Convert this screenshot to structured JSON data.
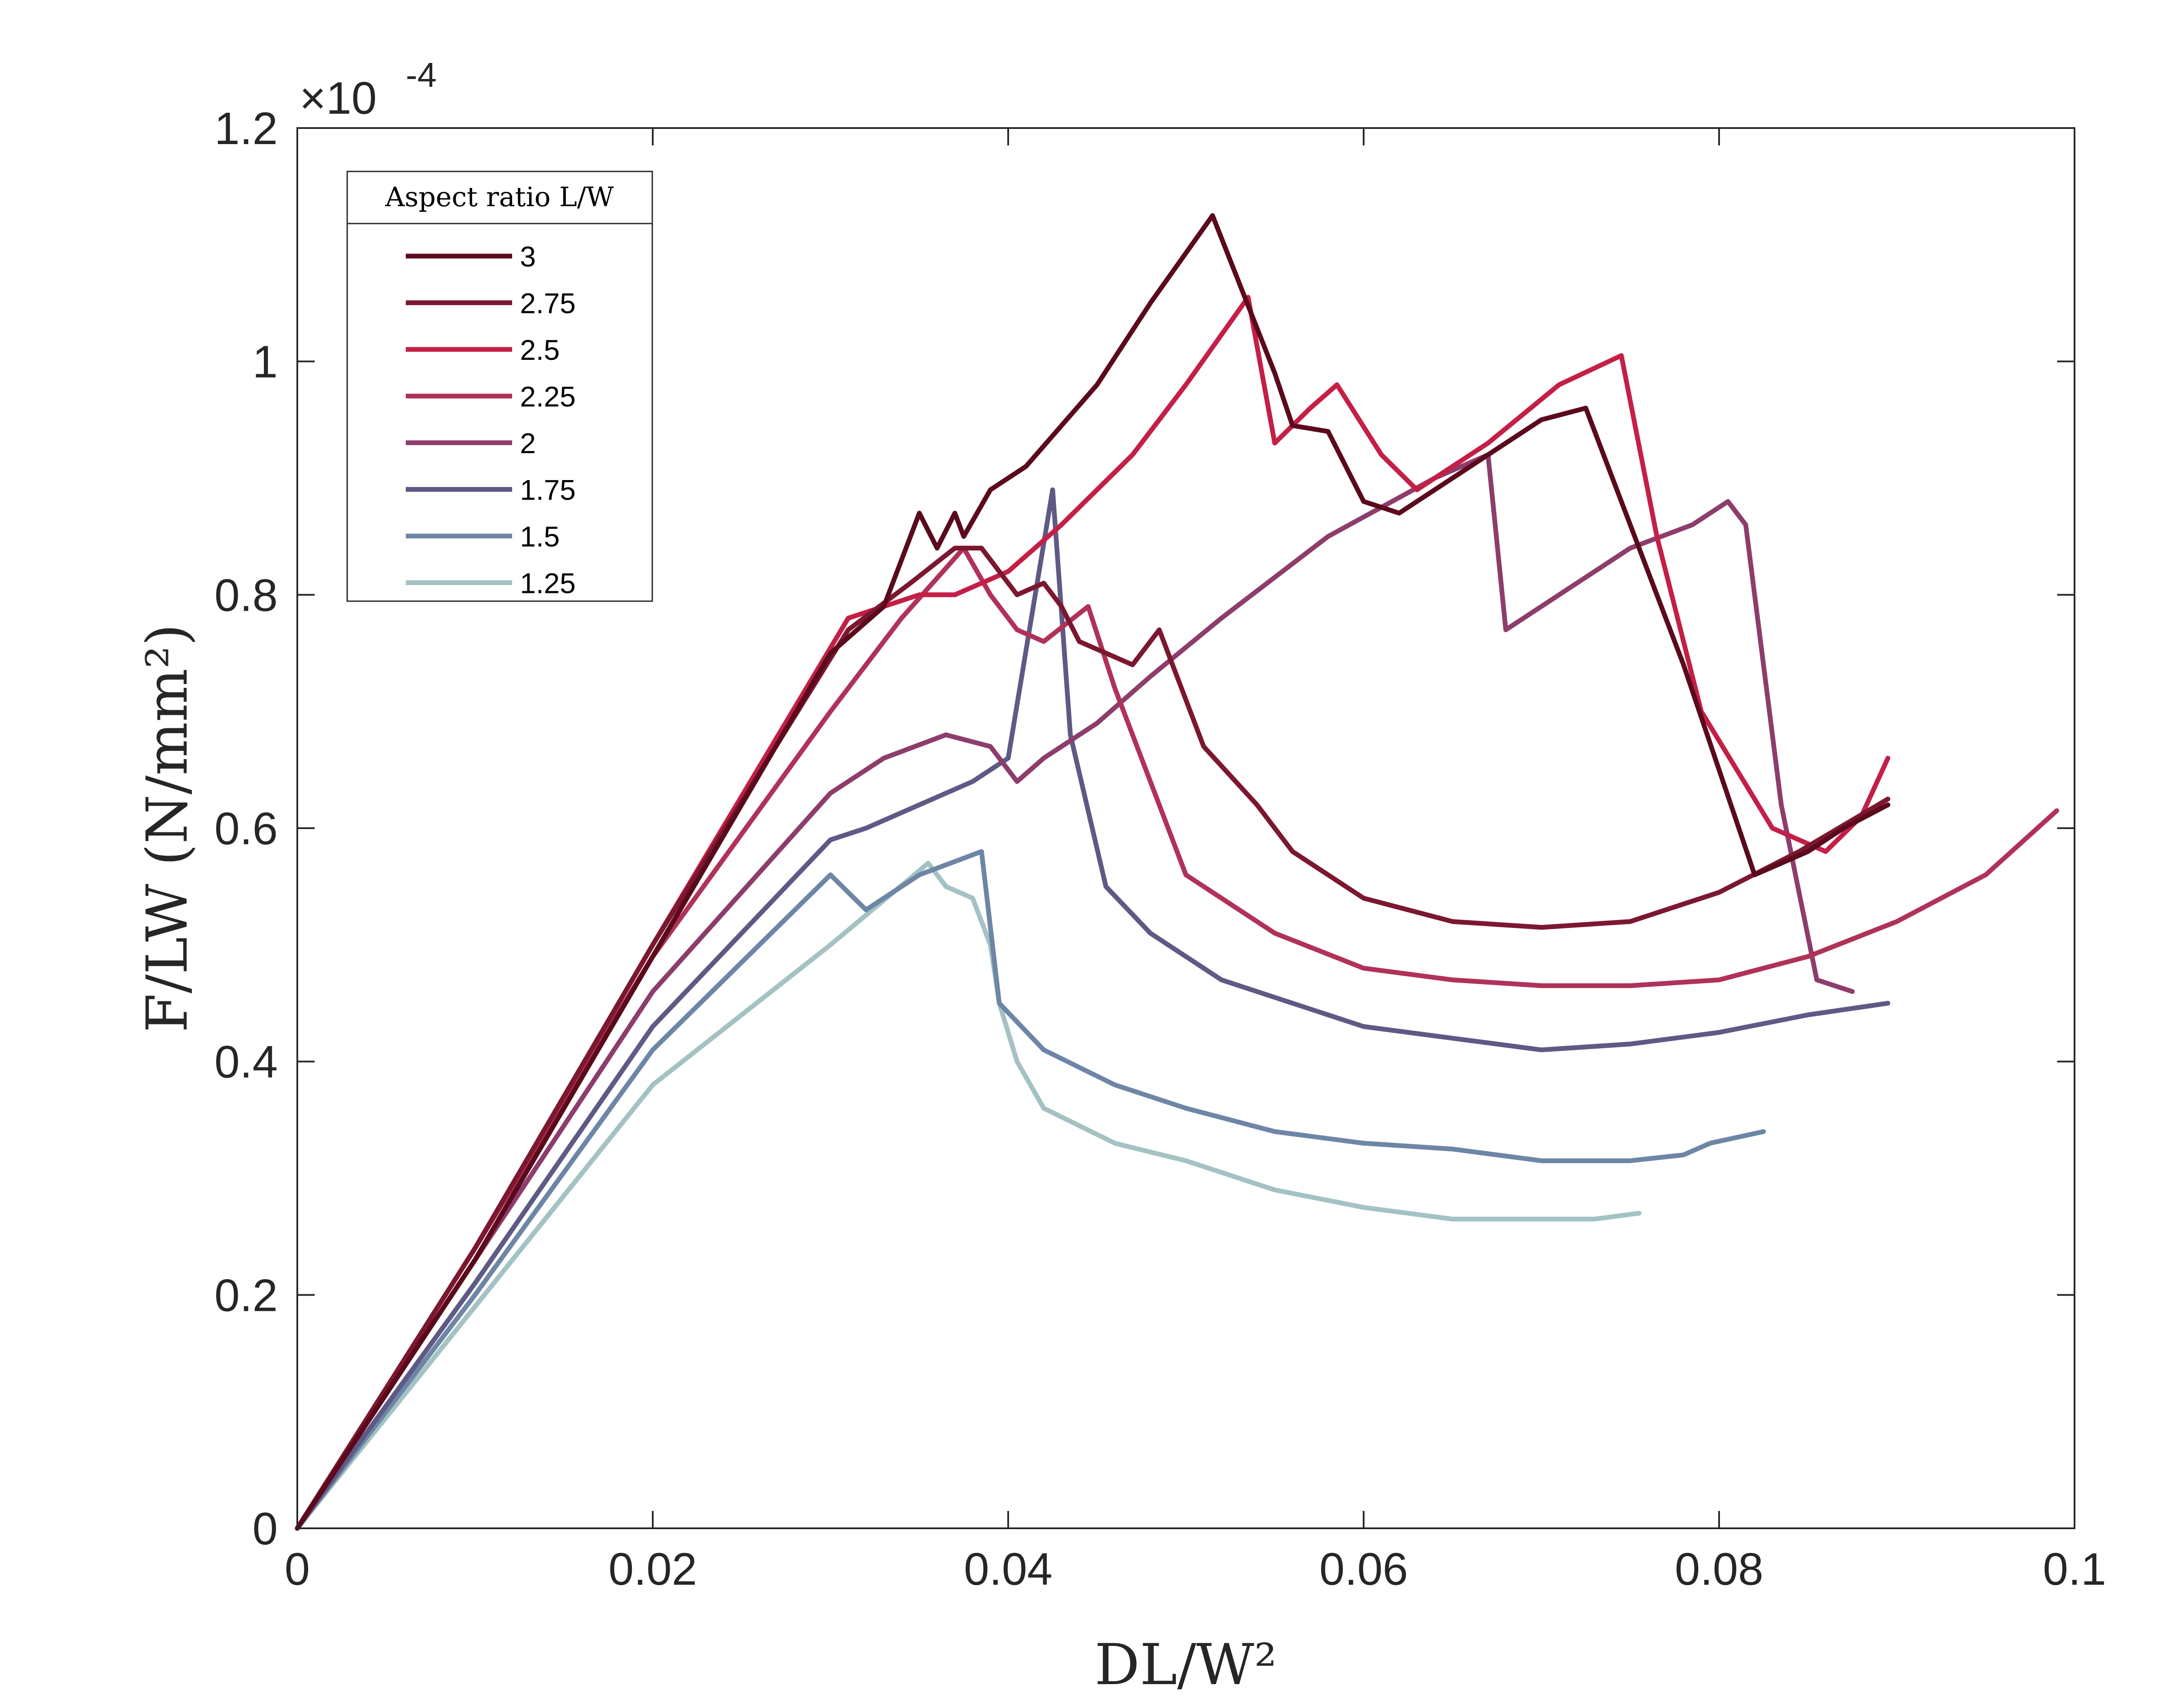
{
  "chart_data": {
    "type": "line",
    "title": "",
    "xlabel": "DL/W²",
    "ylabel": "F/LW (N/mm²)",
    "y_exponent_label": "×10",
    "y_exponent_value": "-4",
    "xlim": [
      0,
      0.1
    ],
    "ylim": [
      0,
      1.2
    ],
    "x_ticks": [
      0,
      0.02,
      0.04,
      0.06,
      0.08,
      0.1
    ],
    "x_tick_labels": [
      "0",
      "0.02",
      "0.04",
      "0.06",
      "0.08",
      "0.1"
    ],
    "y_ticks": [
      0,
      0.2,
      0.4,
      0.6,
      0.8,
      1.0,
      1.2
    ],
    "y_tick_labels": [
      "0",
      "0.2",
      "0.4",
      "0.6",
      "0.8",
      "1",
      "1.2"
    ],
    "grid": false,
    "legend_title": "Aspect ratio L/W",
    "legend_position": "top-left",
    "series": [
      {
        "name": "3",
        "color": "#5a0a1c",
        "points": [
          [
            0,
            0
          ],
          [
            0.01,
            0.23
          ],
          [
            0.02,
            0.49
          ],
          [
            0.03,
            0.75
          ],
          [
            0.033,
            0.79
          ],
          [
            0.035,
            0.87
          ],
          [
            0.036,
            0.84
          ],
          [
            0.037,
            0.87
          ],
          [
            0.0375,
            0.85
          ],
          [
            0.039,
            0.89
          ],
          [
            0.041,
            0.91
          ],
          [
            0.045,
            0.98
          ],
          [
            0.048,
            1.05
          ],
          [
            0.0515,
            1.125
          ],
          [
            0.055,
            0.99
          ],
          [
            0.056,
            0.945
          ],
          [
            0.058,
            0.94
          ],
          [
            0.06,
            0.88
          ],
          [
            0.062,
            0.87
          ],
          [
            0.066,
            0.91
          ],
          [
            0.07,
            0.95
          ],
          [
            0.0725,
            0.96
          ],
          [
            0.0745,
            0.88
          ],
          [
            0.078,
            0.74
          ],
          [
            0.082,
            0.56
          ],
          [
            0.085,
            0.58
          ],
          [
            0.087,
            0.6
          ],
          [
            0.0895,
            0.62
          ]
        ]
      },
      {
        "name": "2.75",
        "color": "#7c1730",
        "points": [
          [
            0,
            0
          ],
          [
            0.01,
            0.24
          ],
          [
            0.02,
            0.5
          ],
          [
            0.031,
            0.77
          ],
          [
            0.0345,
            0.81
          ],
          [
            0.037,
            0.84
          ],
          [
            0.0385,
            0.84
          ],
          [
            0.0395,
            0.82
          ],
          [
            0.0405,
            0.8
          ],
          [
            0.042,
            0.81
          ],
          [
            0.043,
            0.79
          ],
          [
            0.044,
            0.76
          ],
          [
            0.047,
            0.74
          ],
          [
            0.0485,
            0.77
          ],
          [
            0.0495,
            0.73
          ],
          [
            0.051,
            0.67
          ],
          [
            0.054,
            0.62
          ],
          [
            0.056,
            0.58
          ],
          [
            0.06,
            0.54
          ],
          [
            0.065,
            0.52
          ],
          [
            0.07,
            0.515
          ],
          [
            0.075,
            0.52
          ],
          [
            0.08,
            0.545
          ],
          [
            0.0845,
            0.58
          ],
          [
            0.0895,
            0.625
          ]
        ]
      },
      {
        "name": "2.5",
        "color": "#c41f46",
        "points": [
          [
            0,
            0
          ],
          [
            0.01,
            0.24
          ],
          [
            0.02,
            0.5
          ],
          [
            0.031,
            0.78
          ],
          [
            0.035,
            0.8
          ],
          [
            0.037,
            0.8
          ],
          [
            0.04,
            0.82
          ],
          [
            0.043,
            0.86
          ],
          [
            0.047,
            0.92
          ],
          [
            0.05,
            0.98
          ],
          [
            0.0535,
            1.055
          ],
          [
            0.055,
            0.93
          ],
          [
            0.057,
            0.96
          ],
          [
            0.0585,
            0.98
          ],
          [
            0.061,
            0.92
          ],
          [
            0.063,
            0.89
          ],
          [
            0.067,
            0.93
          ],
          [
            0.071,
            0.98
          ],
          [
            0.0745,
            1.005
          ],
          [
            0.0765,
            0.85
          ],
          [
            0.079,
            0.7
          ],
          [
            0.083,
            0.6
          ],
          [
            0.086,
            0.58
          ],
          [
            0.088,
            0.61
          ],
          [
            0.0895,
            0.66
          ]
        ]
      },
      {
        "name": "2.25",
        "color": "#b03258",
        "points": [
          [
            0,
            0
          ],
          [
            0.01,
            0.24
          ],
          [
            0.02,
            0.49
          ],
          [
            0.03,
            0.7
          ],
          [
            0.032,
            0.74
          ],
          [
            0.034,
            0.78
          ],
          [
            0.0375,
            0.84
          ],
          [
            0.039,
            0.8
          ],
          [
            0.0405,
            0.77
          ],
          [
            0.042,
            0.76
          ],
          [
            0.0445,
            0.79
          ],
          [
            0.046,
            0.72
          ],
          [
            0.048,
            0.64
          ],
          [
            0.05,
            0.56
          ],
          [
            0.055,
            0.51
          ],
          [
            0.06,
            0.48
          ],
          [
            0.065,
            0.47
          ],
          [
            0.07,
            0.465
          ],
          [
            0.075,
            0.465
          ],
          [
            0.08,
            0.47
          ],
          [
            0.085,
            0.49
          ],
          [
            0.09,
            0.52
          ],
          [
            0.095,
            0.56
          ],
          [
            0.099,
            0.615
          ]
        ]
      },
      {
        "name": "2",
        "color": "#8d3d6b",
        "points": [
          [
            0,
            0
          ],
          [
            0.01,
            0.23
          ],
          [
            0.02,
            0.46
          ],
          [
            0.03,
            0.63
          ],
          [
            0.033,
            0.66
          ],
          [
            0.0365,
            0.68
          ],
          [
            0.039,
            0.67
          ],
          [
            0.0405,
            0.64
          ],
          [
            0.042,
            0.66
          ],
          [
            0.045,
            0.69
          ],
          [
            0.048,
            0.73
          ],
          [
            0.052,
            0.78
          ],
          [
            0.058,
            0.85
          ],
          [
            0.064,
            0.9
          ],
          [
            0.067,
            0.92
          ],
          [
            0.068,
            0.77
          ],
          [
            0.07,
            0.79
          ],
          [
            0.075,
            0.84
          ],
          [
            0.0785,
            0.86
          ],
          [
            0.0805,
            0.88
          ],
          [
            0.0815,
            0.86
          ],
          [
            0.0835,
            0.62
          ],
          [
            0.0855,
            0.47
          ],
          [
            0.0875,
            0.46
          ]
        ]
      },
      {
        "name": "1.75",
        "color": "#5e5a85",
        "points": [
          [
            0,
            0
          ],
          [
            0.01,
            0.21
          ],
          [
            0.02,
            0.43
          ],
          [
            0.03,
            0.59
          ],
          [
            0.032,
            0.6
          ],
          [
            0.035,
            0.62
          ],
          [
            0.038,
            0.64
          ],
          [
            0.04,
            0.66
          ],
          [
            0.0425,
            0.89
          ],
          [
            0.0435,
            0.68
          ],
          [
            0.0455,
            0.55
          ],
          [
            0.048,
            0.51
          ],
          [
            0.052,
            0.47
          ],
          [
            0.056,
            0.45
          ],
          [
            0.06,
            0.43
          ],
          [
            0.065,
            0.42
          ],
          [
            0.07,
            0.41
          ],
          [
            0.075,
            0.415
          ],
          [
            0.08,
            0.425
          ],
          [
            0.085,
            0.44
          ],
          [
            0.0895,
            0.45
          ]
        ]
      },
      {
        "name": "1.5",
        "color": "#6e86a6",
        "points": [
          [
            0,
            0
          ],
          [
            0.01,
            0.2
          ],
          [
            0.02,
            0.41
          ],
          [
            0.03,
            0.56
          ],
          [
            0.032,
            0.53
          ],
          [
            0.035,
            0.56
          ],
          [
            0.0385,
            0.58
          ],
          [
            0.0395,
            0.45
          ],
          [
            0.042,
            0.41
          ],
          [
            0.046,
            0.38
          ],
          [
            0.05,
            0.36
          ],
          [
            0.055,
            0.34
          ],
          [
            0.06,
            0.33
          ],
          [
            0.065,
            0.325
          ],
          [
            0.07,
            0.315
          ],
          [
            0.075,
            0.315
          ],
          [
            0.078,
            0.32
          ],
          [
            0.0795,
            0.33
          ],
          [
            0.0825,
            0.34
          ]
        ]
      },
      {
        "name": "1.25",
        "color": "#a4c2c3",
        "points": [
          [
            0,
            0
          ],
          [
            0.01,
            0.19
          ],
          [
            0.02,
            0.38
          ],
          [
            0.03,
            0.5
          ],
          [
            0.0355,
            0.57
          ],
          [
            0.0365,
            0.55
          ],
          [
            0.038,
            0.54
          ],
          [
            0.039,
            0.5
          ],
          [
            0.0395,
            0.45
          ],
          [
            0.0405,
            0.4
          ],
          [
            0.042,
            0.36
          ],
          [
            0.046,
            0.33
          ],
          [
            0.05,
            0.315
          ],
          [
            0.055,
            0.29
          ],
          [
            0.06,
            0.275
          ],
          [
            0.065,
            0.265
          ],
          [
            0.07,
            0.265
          ],
          [
            0.073,
            0.265
          ],
          [
            0.0755,
            0.27
          ]
        ]
      }
    ]
  }
}
